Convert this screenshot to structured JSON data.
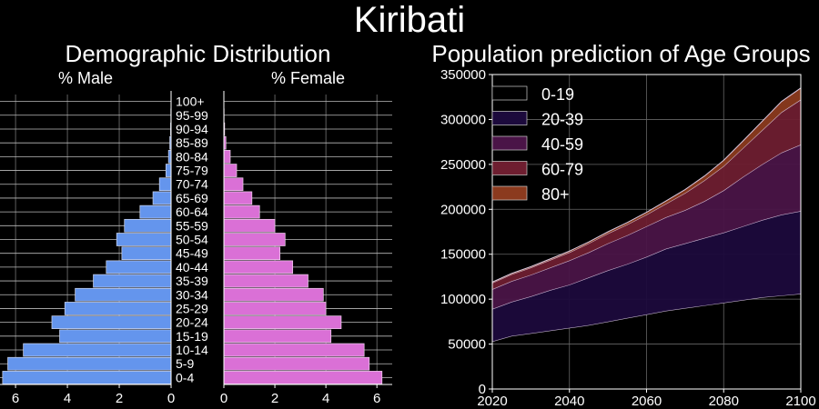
{
  "title": "Kiribati",
  "chart_data": [
    {
      "type": "bar",
      "orientation": "horizontal",
      "layout": "population-pyramid",
      "title": "Demographic Distribution",
      "categories": [
        "0-4",
        "5-9",
        "10-14",
        "15-19",
        "20-24",
        "25-29",
        "30-34",
        "35-39",
        "40-44",
        "45-49",
        "50-54",
        "55-59",
        "60-64",
        "65-69",
        "70-74",
        "75-79",
        "80-84",
        "85-89",
        "90-94",
        "95-99",
        "100+"
      ],
      "series": [
        {
          "name": "% Male",
          "color": "#6495ed",
          "xlim": [
            0,
            6.6
          ],
          "values": [
            6.5,
            6.3,
            5.7,
            4.3,
            4.6,
            4.1,
            3.7,
            3.0,
            2.5,
            1.9,
            2.1,
            1.8,
            1.2,
            0.7,
            0.45,
            0.2,
            0.1,
            0.05,
            0.02,
            0.01,
            0.0
          ]
        },
        {
          "name": "% Female",
          "color": "#da70d6",
          "xlim": [
            0,
            6.6
          ],
          "values": [
            6.2,
            5.7,
            5.5,
            4.2,
            4.6,
            4.0,
            3.9,
            3.3,
            2.7,
            2.2,
            2.4,
            2.0,
            1.4,
            1.1,
            0.75,
            0.5,
            0.25,
            0.08,
            0.03,
            0.01,
            0.0
          ]
        }
      ],
      "xticks": [
        6,
        4,
        2,
        0
      ],
      "grid": true
    },
    {
      "type": "area",
      "stacked": true,
      "title": "Population prediction of Age Groups",
      "x": [
        2020,
        2025,
        2030,
        2035,
        2040,
        2045,
        2050,
        2055,
        2060,
        2065,
        2070,
        2075,
        2080,
        2085,
        2090,
        2095,
        2100
      ],
      "series": [
        {
          "name": "0-19",
          "color": "#000000",
          "values": [
            53000,
            59000,
            62000,
            65000,
            68000,
            71000,
            75000,
            79000,
            83000,
            87000,
            90000,
            93000,
            96000,
            99000,
            102000,
            104000,
            106000
          ]
        },
        {
          "name": "20-39",
          "color": "#1c0a3c",
          "values": [
            36000,
            38000,
            41000,
            45000,
            48000,
            53000,
            57000,
            60000,
            64000,
            69000,
            72000,
            75000,
            78000,
            82000,
            86000,
            90000,
            92000
          ]
        },
        {
          "name": "40-59",
          "color": "#4a1447",
          "values": [
            22000,
            23000,
            24000,
            25000,
            27000,
            28000,
            30000,
            32000,
            34000,
            35000,
            37000,
            41000,
            47000,
            55000,
            62000,
            69000,
            74000
          ]
        },
        {
          "name": "60-79",
          "color": "#6e1e30",
          "values": [
            7000,
            7500,
            8000,
            8500,
            9000,
            10000,
            11000,
            12000,
            13000,
            15000,
            19000,
            23000,
            27000,
            32000,
            38000,
            45000,
            50000
          ]
        },
        {
          "name": "80+",
          "color": "#8b3a1e",
          "values": [
            1000,
            1100,
            1200,
            1300,
            1500,
            1700,
            2000,
            2300,
            2700,
            3200,
            4000,
            5000,
            6500,
            8000,
            10000,
            12000,
            13000
          ]
        }
      ],
      "xlim": [
        2020,
        2100
      ],
      "ylim": [
        0,
        350000
      ],
      "xticks": [
        2020,
        2040,
        2060,
        2080,
        2100
      ],
      "yticks": [
        0,
        50000,
        100000,
        150000,
        200000,
        250000,
        300000,
        350000
      ],
      "legend": "top-left",
      "grid": true
    }
  ]
}
